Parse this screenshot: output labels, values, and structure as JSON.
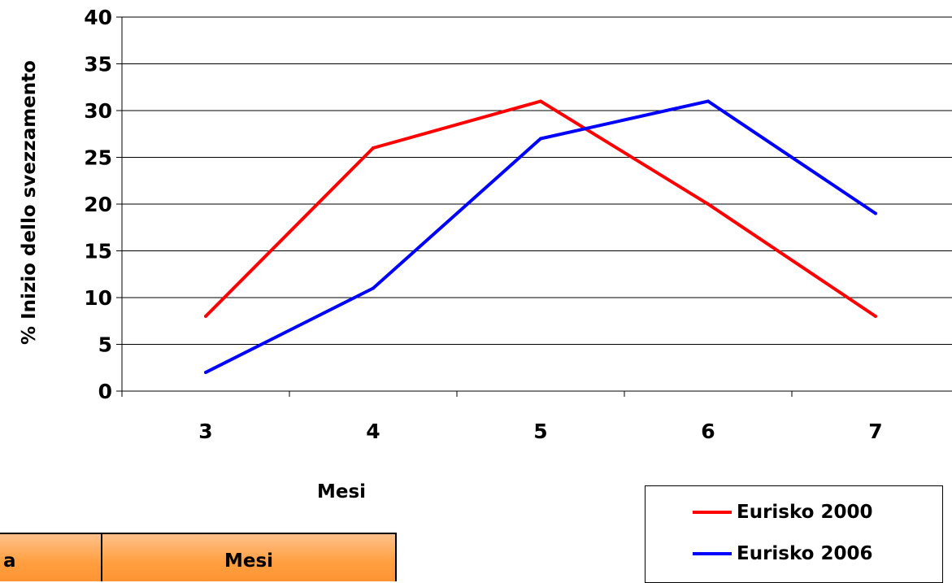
{
  "chart_data": {
    "type": "line",
    "categories": [
      "3",
      "4",
      "5",
      "6",
      "7"
    ],
    "series": [
      {
        "name": "Eurisko 2000",
        "color": "#ff0000",
        "values": [
          8,
          26,
          31,
          20,
          8
        ]
      },
      {
        "name": "Eurisko 2006",
        "color": "#0000ff",
        "values": [
          2,
          11,
          27,
          31,
          19
        ]
      }
    ],
    "xlabel": "Mesi",
    "ylabel": "% Inizio dello svezzamento",
    "ylim": [
      0,
      40
    ],
    "yticks": [
      "0",
      "5",
      "10",
      "15",
      "20",
      "25",
      "30",
      "35",
      "40"
    ],
    "grid": true,
    "legend": "bottom-right"
  },
  "table": {
    "headers": [
      "a",
      "Mesi"
    ],
    "header_color": "#ff9f40"
  }
}
